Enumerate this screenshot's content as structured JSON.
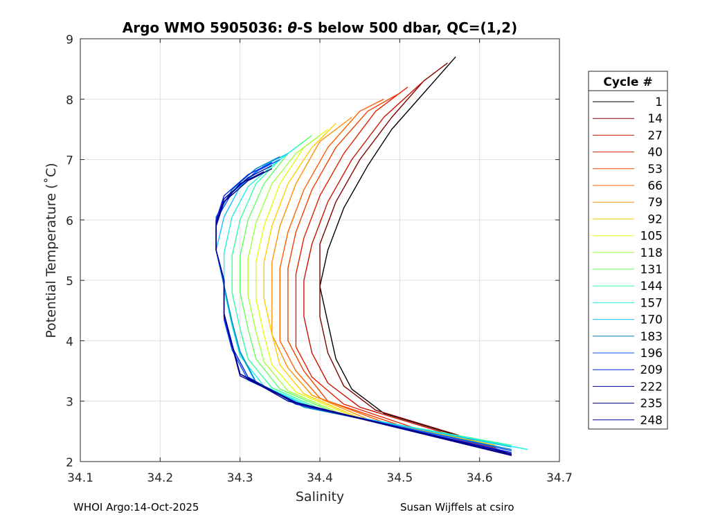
{
  "chart_data": {
    "type": "line",
    "title_prefix": "Argo WMO 5905036: ",
    "title_symbol": "θ",
    "title_suffix": "-S below 500 dbar,  QC=(1,2)",
    "xlabel": "Salinity",
    "ylabel": "Potential Temperature (˚C)",
    "xlim": [
      34.1,
      34.7
    ],
    "ylim": [
      2,
      9
    ],
    "xticks": [
      34.1,
      34.2,
      34.3,
      34.4,
      34.5,
      34.6,
      34.7
    ],
    "xtick_labels": [
      "34.1",
      "34.2",
      "34.3",
      "34.4",
      "34.5",
      "34.6",
      "34.7"
    ],
    "yticks": [
      2,
      3,
      4,
      5,
      6,
      7,
      8,
      9
    ],
    "ytick_labels": [
      "2",
      "3",
      "4",
      "5",
      "6",
      "7",
      "8",
      "9"
    ],
    "grid": true,
    "colormap": "jet",
    "legend": {
      "title": "Cycle #",
      "placement": "outside-right",
      "entries": [
        {
          "label": "1",
          "color": "#000000"
        },
        {
          "label": "14",
          "color": "#800000"
        },
        {
          "label": "27",
          "color": "#c81000"
        },
        {
          "label": "40",
          "color": "#e02000"
        },
        {
          "label": "53",
          "color": "#f04000"
        },
        {
          "label": "66",
          "color": "#ff6000"
        },
        {
          "label": "79",
          "color": "#ff9000"
        },
        {
          "label": "92",
          "color": "#ffd000"
        },
        {
          "label": "105",
          "color": "#e0ff10"
        },
        {
          "label": "118",
          "color": "#a0ff40"
        },
        {
          "label": "131",
          "color": "#60ff60"
        },
        {
          "label": "144",
          "color": "#30ffa0"
        },
        {
          "label": "157",
          "color": "#20f0e0"
        },
        {
          "label": "170",
          "color": "#10c0ff"
        },
        {
          "label": "183",
          "color": "#0080c0"
        },
        {
          "label": "196",
          "color": "#0050ff"
        },
        {
          "label": "209",
          "color": "#0020e0"
        },
        {
          "label": "222",
          "color": "#0000a0"
        },
        {
          "label": "235",
          "color": "#000080"
        },
        {
          "label": "248",
          "color": "#000090"
        }
      ]
    },
    "series": [
      {
        "name": "cycle 1",
        "color": "#000000",
        "points": [
          [
            34.64,
            2.1
          ],
          [
            34.58,
            2.4
          ],
          [
            34.48,
            2.8
          ],
          [
            34.44,
            3.2
          ],
          [
            34.42,
            3.7
          ],
          [
            34.41,
            4.3
          ],
          [
            34.4,
            4.9
          ],
          [
            34.41,
            5.5
          ],
          [
            34.43,
            6.2
          ],
          [
            34.46,
            6.9
          ],
          [
            34.49,
            7.5
          ],
          [
            34.53,
            8.1
          ],
          [
            34.57,
            8.7
          ]
        ]
      },
      {
        "name": "cycle 14",
        "color": "#800000",
        "points": [
          [
            34.64,
            2.12
          ],
          [
            34.57,
            2.45
          ],
          [
            34.47,
            2.85
          ],
          [
            34.43,
            3.25
          ],
          [
            34.41,
            3.8
          ],
          [
            34.4,
            4.4
          ],
          [
            34.4,
            5.0
          ],
          [
            34.4,
            5.6
          ],
          [
            34.42,
            6.3
          ],
          [
            34.45,
            7.0
          ],
          [
            34.49,
            7.7
          ],
          [
            34.53,
            8.3
          ],
          [
            34.56,
            8.6
          ]
        ]
      },
      {
        "name": "cycle 27",
        "color": "#c81000",
        "points": [
          [
            34.63,
            2.15
          ],
          [
            34.55,
            2.5
          ],
          [
            34.45,
            2.9
          ],
          [
            34.41,
            3.3
          ],
          [
            34.39,
            3.8
          ],
          [
            34.38,
            4.4
          ],
          [
            34.38,
            5.0
          ],
          [
            34.39,
            5.6
          ],
          [
            34.41,
            6.3
          ],
          [
            34.44,
            7.0
          ],
          [
            34.48,
            7.7
          ],
          [
            34.53,
            8.3
          ]
        ]
      },
      {
        "name": "cycle 40",
        "color": "#e02000",
        "points": [
          [
            34.62,
            2.2
          ],
          [
            34.52,
            2.55
          ],
          [
            34.43,
            2.95
          ],
          [
            34.39,
            3.4
          ],
          [
            34.37,
            3.9
          ],
          [
            34.37,
            4.5
          ],
          [
            34.37,
            5.1
          ],
          [
            34.38,
            5.7
          ],
          [
            34.4,
            6.4
          ],
          [
            34.43,
            7.1
          ],
          [
            34.47,
            7.8
          ],
          [
            34.51,
            8.2
          ]
        ]
      },
      {
        "name": "cycle 53",
        "color": "#f04000",
        "points": [
          [
            34.62,
            2.22
          ],
          [
            34.5,
            2.6
          ],
          [
            34.41,
            3.0
          ],
          [
            34.38,
            3.5
          ],
          [
            34.36,
            4.0
          ],
          [
            34.36,
            4.6
          ],
          [
            34.36,
            5.2
          ],
          [
            34.37,
            5.8
          ],
          [
            34.39,
            6.5
          ],
          [
            34.42,
            7.2
          ],
          [
            34.46,
            7.8
          ],
          [
            34.5,
            8.1
          ]
        ]
      },
      {
        "name": "cycle 66",
        "color": "#ff6000",
        "points": [
          [
            34.62,
            2.25
          ],
          [
            34.48,
            2.65
          ],
          [
            34.4,
            3.05
          ],
          [
            34.37,
            3.5
          ],
          [
            34.35,
            4.0
          ],
          [
            34.35,
            4.6
          ],
          [
            34.35,
            5.2
          ],
          [
            34.36,
            5.8
          ],
          [
            34.38,
            6.5
          ],
          [
            34.41,
            7.2
          ],
          [
            34.45,
            7.8
          ],
          [
            34.48,
            8.0
          ]
        ]
      },
      {
        "name": "cycle 79",
        "color": "#ff9000",
        "points": [
          [
            34.62,
            2.25
          ],
          [
            34.46,
            2.7
          ],
          [
            34.39,
            3.1
          ],
          [
            34.36,
            3.55
          ],
          [
            34.34,
            4.1
          ],
          [
            34.34,
            4.7
          ],
          [
            34.34,
            5.3
          ],
          [
            34.35,
            5.9
          ],
          [
            34.37,
            6.6
          ],
          [
            34.4,
            7.3
          ],
          [
            34.44,
            7.7
          ]
        ]
      },
      {
        "name": "cycle 92",
        "color": "#ffd000",
        "points": [
          [
            34.62,
            2.27
          ],
          [
            34.45,
            2.72
          ],
          [
            34.38,
            3.12
          ],
          [
            34.35,
            3.6
          ],
          [
            34.34,
            4.1
          ],
          [
            34.33,
            4.7
          ],
          [
            34.33,
            5.3
          ],
          [
            34.34,
            5.9
          ],
          [
            34.36,
            6.6
          ],
          [
            34.39,
            7.2
          ],
          [
            34.42,
            7.6
          ]
        ]
      },
      {
        "name": "cycle 105",
        "color": "#e0ff10",
        "points": [
          [
            34.63,
            2.27
          ],
          [
            34.44,
            2.75
          ],
          [
            34.37,
            3.15
          ],
          [
            34.34,
            3.6
          ],
          [
            34.33,
            4.1
          ],
          [
            34.32,
            4.7
          ],
          [
            34.32,
            5.3
          ],
          [
            34.33,
            5.9
          ],
          [
            34.35,
            6.6
          ],
          [
            34.38,
            7.2
          ],
          [
            34.41,
            7.5
          ]
        ]
      },
      {
        "name": "cycle 118",
        "color": "#a0ff40",
        "points": [
          [
            34.63,
            2.28
          ],
          [
            34.43,
            2.77
          ],
          [
            34.36,
            3.17
          ],
          [
            34.33,
            3.65
          ],
          [
            34.32,
            4.15
          ],
          [
            34.31,
            4.75
          ],
          [
            34.31,
            5.35
          ],
          [
            34.32,
            5.95
          ],
          [
            34.34,
            6.6
          ],
          [
            34.37,
            7.1
          ],
          [
            34.4,
            7.4
          ]
        ]
      },
      {
        "name": "cycle 131",
        "color": "#60ff60",
        "points": [
          [
            34.63,
            2.28
          ],
          [
            34.42,
            2.8
          ],
          [
            34.35,
            3.2
          ],
          [
            34.32,
            3.7
          ],
          [
            34.31,
            4.2
          ],
          [
            34.3,
            4.8
          ],
          [
            34.3,
            5.4
          ],
          [
            34.31,
            6.0
          ],
          [
            34.33,
            6.6
          ],
          [
            34.36,
            7.1
          ],
          [
            34.39,
            7.4
          ]
        ]
      },
      {
        "name": "cycle 144",
        "color": "#30ffa0",
        "points": [
          [
            34.64,
            2.27
          ],
          [
            34.41,
            2.82
          ],
          [
            34.34,
            3.22
          ],
          [
            34.31,
            3.7
          ],
          [
            34.3,
            4.2
          ],
          [
            34.29,
            4.8
          ],
          [
            34.29,
            5.4
          ],
          [
            34.3,
            6.0
          ],
          [
            34.32,
            6.6
          ],
          [
            34.35,
            7.0
          ],
          [
            34.38,
            7.3
          ]
        ]
      },
      {
        "name": "cycle 157",
        "color": "#20f0e0",
        "points": [
          [
            34.66,
            2.2
          ],
          [
            34.4,
            2.85
          ],
          [
            34.33,
            3.25
          ],
          [
            34.3,
            3.75
          ],
          [
            34.29,
            4.25
          ],
          [
            34.28,
            4.85
          ],
          [
            34.28,
            5.45
          ],
          [
            34.29,
            6.05
          ],
          [
            34.31,
            6.55
          ],
          [
            34.34,
            6.9
          ],
          [
            34.37,
            7.2
          ]
        ]
      },
      {
        "name": "cycle 170",
        "color": "#10c0ff",
        "points": [
          [
            34.64,
            2.24
          ],
          [
            34.39,
            2.88
          ],
          [
            34.32,
            3.3
          ],
          [
            34.3,
            3.8
          ],
          [
            34.29,
            4.3
          ],
          [
            34.28,
            4.9
          ],
          [
            34.27,
            5.5
          ],
          [
            34.28,
            6.05
          ],
          [
            34.3,
            6.55
          ],
          [
            34.33,
            6.9
          ],
          [
            34.36,
            7.1
          ]
        ]
      },
      {
        "name": "cycle 183",
        "color": "#0080c0",
        "points": [
          [
            34.64,
            2.2
          ],
          [
            34.38,
            2.9
          ],
          [
            34.32,
            3.32
          ],
          [
            34.3,
            3.82
          ],
          [
            34.29,
            4.32
          ],
          [
            34.28,
            4.92
          ],
          [
            34.27,
            5.5
          ],
          [
            34.27,
            6.05
          ],
          [
            34.29,
            6.5
          ],
          [
            34.32,
            6.85
          ],
          [
            34.35,
            7.05
          ]
        ]
      },
      {
        "name": "cycle 196",
        "color": "#0050ff",
        "points": [
          [
            34.64,
            2.18
          ],
          [
            34.38,
            2.92
          ],
          [
            34.31,
            3.35
          ],
          [
            34.29,
            3.85
          ],
          [
            34.28,
            4.35
          ],
          [
            34.28,
            4.95
          ],
          [
            34.27,
            5.5
          ],
          [
            34.27,
            6.0
          ],
          [
            34.29,
            6.45
          ],
          [
            34.32,
            6.8
          ],
          [
            34.35,
            7.0
          ]
        ]
      },
      {
        "name": "cycle 209",
        "color": "#0020e0",
        "points": [
          [
            34.64,
            2.15
          ],
          [
            34.37,
            2.95
          ],
          [
            34.31,
            3.4
          ],
          [
            34.29,
            3.9
          ],
          [
            34.28,
            4.4
          ],
          [
            34.28,
            5.0
          ],
          [
            34.27,
            5.5
          ],
          [
            34.27,
            6.0
          ],
          [
            34.28,
            6.4
          ],
          [
            34.31,
            6.75
          ],
          [
            34.34,
            6.95
          ]
        ]
      },
      {
        "name": "cycle 222",
        "color": "#0000a0",
        "points": [
          [
            34.64,
            2.13
          ],
          [
            34.37,
            2.97
          ],
          [
            34.3,
            3.42
          ],
          [
            34.29,
            3.92
          ],
          [
            34.28,
            4.42
          ],
          [
            34.28,
            5.0
          ],
          [
            34.27,
            5.5
          ],
          [
            34.27,
            5.95
          ],
          [
            34.28,
            6.35
          ],
          [
            34.31,
            6.7
          ],
          [
            34.34,
            6.9
          ]
        ]
      },
      {
        "name": "cycle 235",
        "color": "#000080",
        "points": [
          [
            34.64,
            2.11
          ],
          [
            34.37,
            2.98
          ],
          [
            34.3,
            3.45
          ],
          [
            34.29,
            3.95
          ],
          [
            34.28,
            4.45
          ],
          [
            34.28,
            5.0
          ],
          [
            34.27,
            5.5
          ],
          [
            34.27,
            5.9
          ],
          [
            34.28,
            6.3
          ],
          [
            34.31,
            6.65
          ],
          [
            34.34,
            6.85
          ]
        ]
      },
      {
        "name": "cycle 248",
        "color": "#000090",
        "points": [
          [
            34.64,
            2.1
          ],
          [
            34.36,
            3.0
          ],
          [
            34.3,
            3.45
          ],
          [
            34.29,
            3.95
          ],
          [
            34.28,
            4.45
          ],
          [
            34.28,
            5.0
          ],
          [
            34.27,
            5.5
          ],
          [
            34.27,
            5.9
          ],
          [
            34.28,
            6.3
          ],
          [
            34.3,
            6.6
          ],
          [
            34.33,
            6.8
          ]
        ]
      }
    ]
  },
  "footer": {
    "left": "WHOI Argo:14-Oct-2025",
    "right": "Susan Wijffels at csiro"
  }
}
